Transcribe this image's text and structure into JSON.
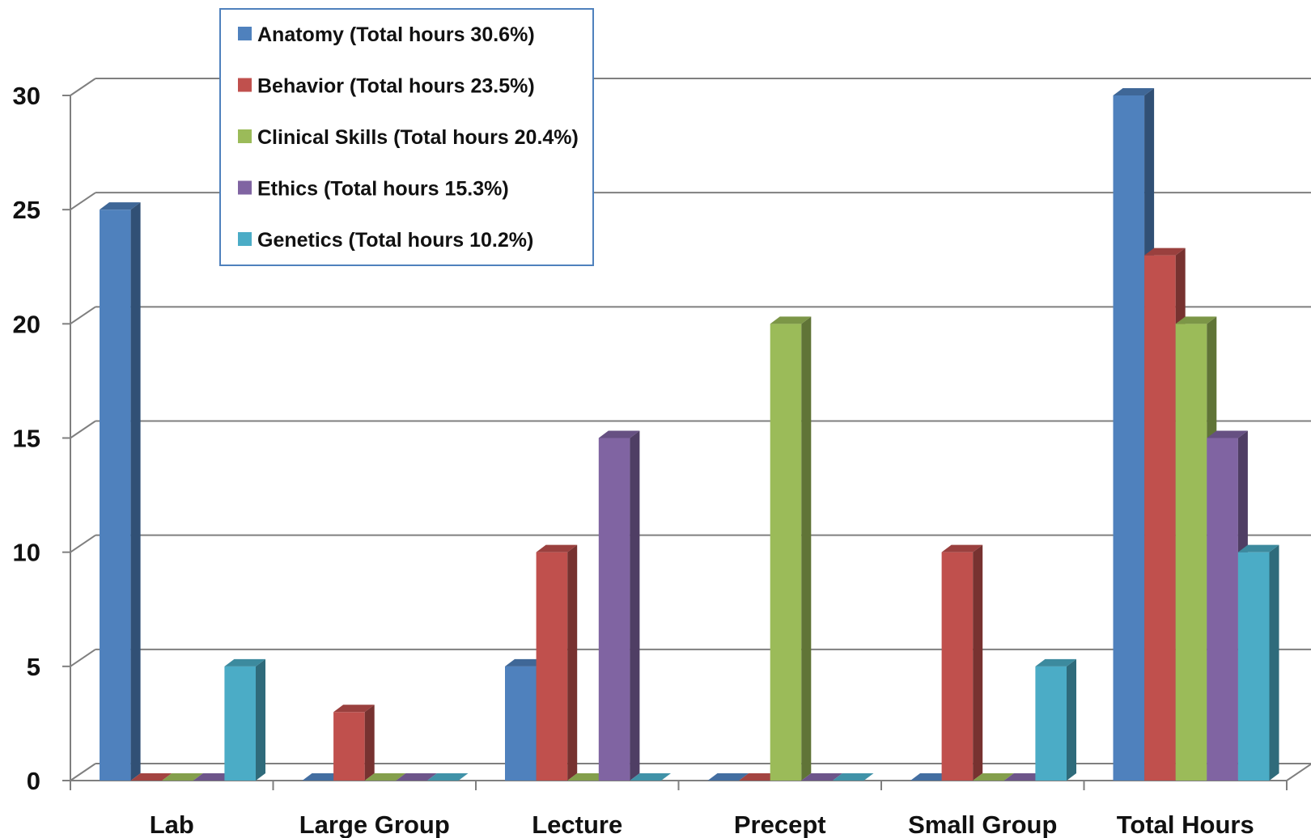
{
  "chart_data": {
    "type": "bar",
    "title": "",
    "xlabel": "",
    "ylabel": "",
    "ylim": [
      0,
      30
    ],
    "y_ticks": [
      "0",
      "5",
      "10",
      "15",
      "20",
      "25",
      "30"
    ],
    "grid": true,
    "style": "3d-clustered-column",
    "legend_position": "top-left",
    "categories": [
      "Lab",
      "Large Group",
      "Lecture",
      "Precept",
      "Small Group",
      "Total Hours"
    ],
    "series": [
      {
        "name": "Anatomy (Total hours 30.6%)",
        "color": "#4F81BD",
        "values": [
          25,
          0,
          5,
          0,
          0,
          30
        ]
      },
      {
        "name": "Behavior (Total hours 23.5%)",
        "color": "#C0504D",
        "values": [
          0,
          3,
          10,
          0,
          10,
          23
        ]
      },
      {
        "name": "Clinical Skills (Total hours 20.4%)",
        "color": "#9BBB59",
        "values": [
          0,
          0,
          0,
          20,
          0,
          20
        ]
      },
      {
        "name": "Ethics (Total hours 15.3%)",
        "color": "#8064A2",
        "values": [
          0,
          0,
          15,
          0,
          0,
          15
        ]
      },
      {
        "name": "Genetics (Total hours 10.2%)",
        "color": "#4BACC6",
        "values": [
          5,
          0,
          0,
          0,
          5,
          10
        ]
      }
    ],
    "legend_border_color": "#4F81BD",
    "gridline_color": "#7f7f7f"
  }
}
